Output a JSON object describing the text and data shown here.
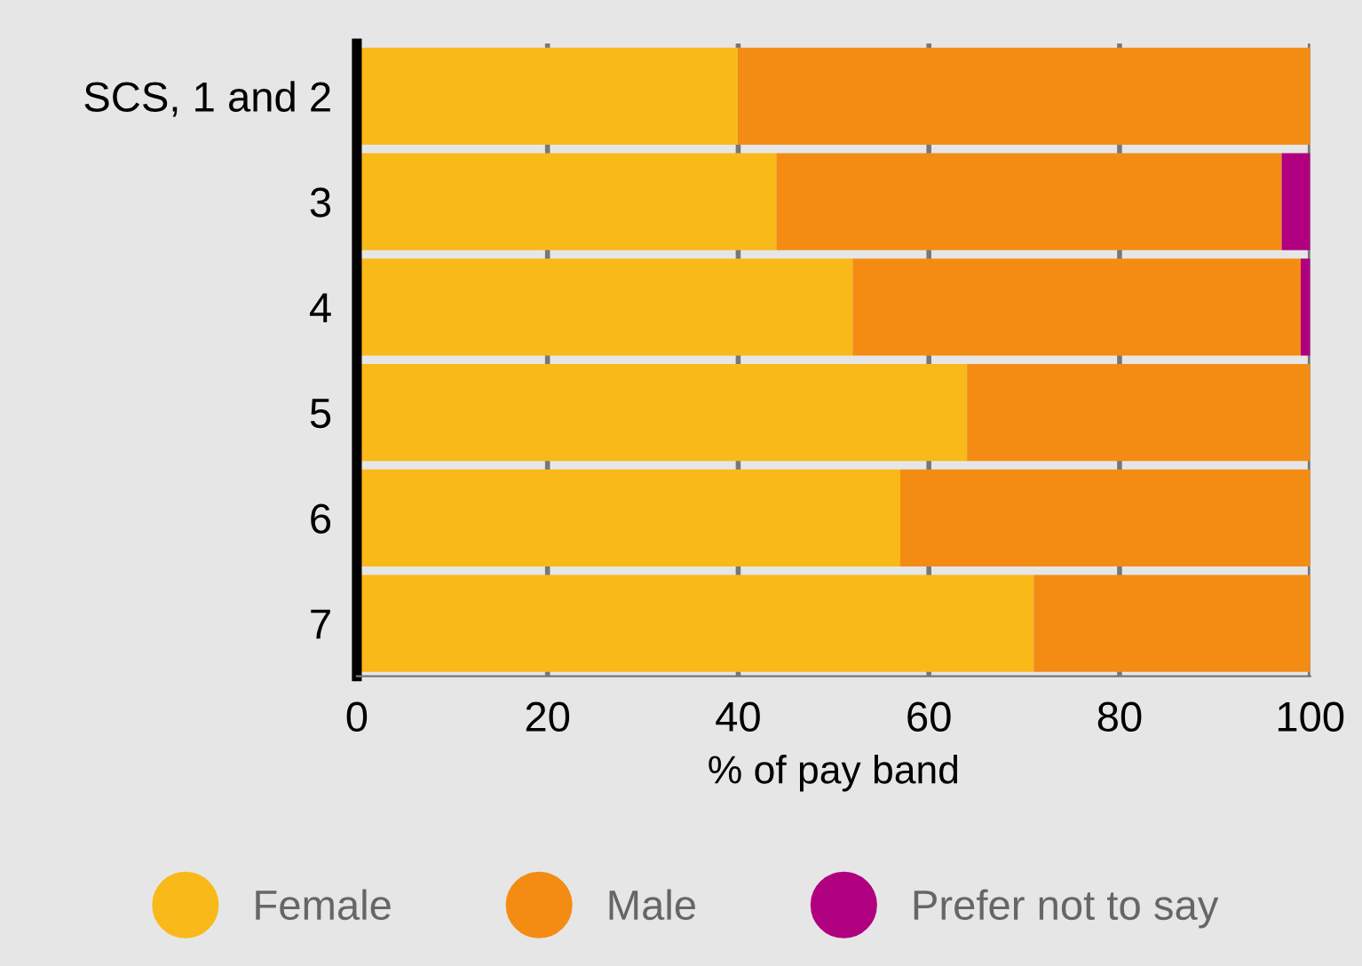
{
  "chart_data": {
    "type": "bar",
    "orientation": "horizontal",
    "stacked": true,
    "categories": [
      "SCS, 1 and 2",
      "3",
      "4",
      "5",
      "6",
      "7"
    ],
    "series": [
      {
        "name": "Female",
        "color": "#f9b918",
        "values": [
          40,
          44,
          52,
          64,
          57,
          71
        ]
      },
      {
        "name": "Male",
        "color": "#f48c14",
        "values": [
          60,
          53,
          47,
          36,
          43,
          29
        ]
      },
      {
        "name": "Prefer not to say",
        "color": "#b1007f",
        "values": [
          0,
          3,
          1,
          0,
          0,
          0
        ]
      }
    ],
    "xlim": [
      0,
      100
    ],
    "xticks": [
      0,
      20,
      40,
      60,
      80,
      100
    ],
    "xlabel": "% of pay band",
    "grid": "x",
    "legend": "bottom",
    "marker": "circle"
  }
}
